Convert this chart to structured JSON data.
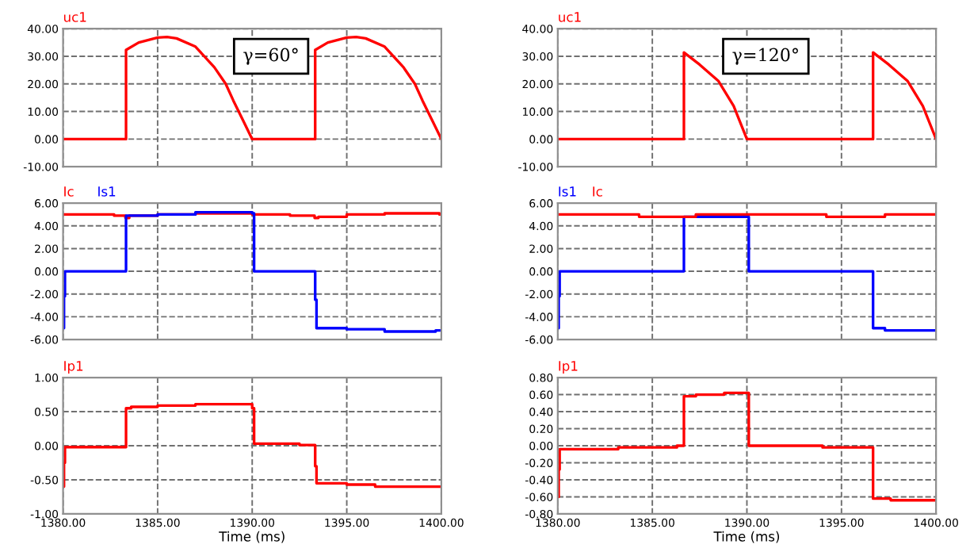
{
  "chart_data": [
    {
      "type": "line",
      "annotations": [
        "γ=60°"
      ],
      "legend": "top left",
      "grid": true,
      "tick_labels": "y",
      "xlim": [
        1380,
        1400
      ],
      "xticks": [
        1380,
        1385,
        1390,
        1395,
        1400
      ],
      "ylim": [
        -10,
        40
      ],
      "yticks": [
        {
          "value": -10,
          "label": "-10.00"
        },
        {
          "value": 0,
          "label": "0.00"
        },
        {
          "value": 10,
          "label": "10.00"
        },
        {
          "value": 20,
          "label": "20.00"
        },
        {
          "value": 30,
          "label": "30.00"
        },
        {
          "value": 40,
          "label": "40.00"
        }
      ],
      "series": [
        {
          "name": "uc1",
          "color": "#ff0000",
          "x": [
            1380,
            1383.33,
            1383.33,
            1384,
            1385,
            1385.5,
            1386,
            1387,
            1388,
            1388.6,
            1389,
            1389.5,
            1390,
            1393.33,
            1393.33,
            1394,
            1395,
            1395.5,
            1396,
            1397,
            1398,
            1398.6,
            1399,
            1399.5,
            1400
          ],
          "values": [
            0,
            0,
            32.3,
            35,
            36.8,
            37,
            36.5,
            33.5,
            26,
            20,
            14,
            7,
            0,
            0,
            32.3,
            35,
            36.8,
            37,
            36.5,
            33.5,
            26,
            20,
            14,
            7,
            0
          ]
        }
      ]
    },
    {
      "type": "line",
      "annotations": [
        "γ=120°"
      ],
      "legend": "top left",
      "grid": true,
      "tick_labels": "y",
      "xlim": [
        1380,
        1400
      ],
      "xticks": [
        1380,
        1385,
        1390,
        1395,
        1400
      ],
      "ylim": [
        -10,
        40
      ],
      "yticks": [
        {
          "value": -10,
          "label": "-10.00"
        },
        {
          "value": 0,
          "label": "0.00"
        },
        {
          "value": 10,
          "label": "10.00"
        },
        {
          "value": 20,
          "label": "20.00"
        },
        {
          "value": 30,
          "label": "30.00"
        },
        {
          "value": 40,
          "label": "40.00"
        }
      ],
      "series": [
        {
          "name": "uc1",
          "color": "#ff0000",
          "x": [
            1380,
            1386.67,
            1386.67,
            1387.5,
            1388.5,
            1389.3,
            1390,
            1396.67,
            1396.67,
            1397.5,
            1398.5,
            1399.3,
            1400
          ],
          "values": [
            0,
            0,
            31.4,
            27,
            21,
            12,
            0,
            0,
            31.4,
            27,
            21,
            12,
            0
          ]
        }
      ]
    },
    {
      "type": "step",
      "legend": "top left",
      "grid": true,
      "tick_labels": "y",
      "xlim": [
        1380,
        1400
      ],
      "xticks": [
        1380,
        1385,
        1390,
        1395,
        1400
      ],
      "ylim": [
        -6,
        6
      ],
      "yticks": [
        {
          "value": -6,
          "label": "-6.00"
        },
        {
          "value": -4,
          "label": "-4.00"
        },
        {
          "value": -2,
          "label": "-2.00"
        },
        {
          "value": 0,
          "label": "0.00"
        },
        {
          "value": 2,
          "label": "2.00"
        },
        {
          "value": 4,
          "label": "4.00"
        },
        {
          "value": 6,
          "label": "6.00"
        }
      ],
      "series": [
        {
          "name": "Ic",
          "color": "#ff0000",
          "x": [
            1380,
            1382.7,
            1383.3,
            1383.5,
            1385,
            1387,
            1390,
            1392,
            1393.3,
            1393.5,
            1395,
            1397,
            1399.9,
            1400
          ],
          "values": [
            5.0,
            4.9,
            4.7,
            4.9,
            5.0,
            5.1,
            5.0,
            4.9,
            4.7,
            4.8,
            5.0,
            5.1,
            5.0,
            5.0
          ]
        },
        {
          "name": "Is1",
          "color": "#0000ff",
          "x": [
            1380,
            1380.05,
            1380.1,
            1383.33,
            1385,
            1387,
            1390,
            1390.1,
            1393.33,
            1393.4,
            1395,
            1397,
            1399.7,
            1400
          ],
          "values": [
            -5,
            -2.2,
            0,
            4.9,
            5.0,
            5.2,
            5.1,
            0,
            -2.5,
            -5.0,
            -5.1,
            -5.3,
            -5.2,
            -5.2
          ]
        }
      ]
    },
    {
      "type": "step",
      "legend": "top left",
      "grid": true,
      "tick_labels": "y",
      "xlim": [
        1380,
        1400
      ],
      "xticks": [
        1380,
        1385,
        1390,
        1395,
        1400
      ],
      "ylim": [
        -6,
        6
      ],
      "yticks": [
        {
          "value": -6,
          "label": "-6.00"
        },
        {
          "value": -4,
          "label": "-4.00"
        },
        {
          "value": -2,
          "label": "-2.00"
        },
        {
          "value": 0,
          "label": "0.00"
        },
        {
          "value": 2,
          "label": "2.00"
        },
        {
          "value": 4,
          "label": "4.00"
        },
        {
          "value": 6,
          "label": "6.00"
        }
      ],
      "series": [
        {
          "name": "Is1",
          "color": "#0000ff",
          "x": [
            1380,
            1380.05,
            1380.1,
            1386.67,
            1390,
            1390.1,
            1396.67,
            1397.3,
            1400
          ],
          "values": [
            -5,
            -2.2,
            0,
            4.8,
            4.8,
            0,
            -5.0,
            -5.2,
            -5.2
          ]
        },
        {
          "name": "Ic",
          "color": "#ff0000",
          "x": [
            1380,
            1384.3,
            1387.3,
            1394.2,
            1397.3,
            1400
          ],
          "values": [
            5.0,
            4.8,
            5.0,
            4.8,
            5.0,
            5.0
          ]
        }
      ]
    },
    {
      "type": "step",
      "legend": "top left",
      "grid": true,
      "xlabel": "Time (ms)",
      "xlim": [
        1380,
        1400
      ],
      "xticks": [
        {
          "value": 1380,
          "label": "1380.00"
        },
        {
          "value": 1385,
          "label": "1385.00"
        },
        {
          "value": 1390,
          "label": "1390.00"
        },
        {
          "value": 1395,
          "label": "1395.00"
        },
        {
          "value": 1400,
          "label": "1400.00"
        }
      ],
      "ylim": [
        -1,
        1
      ],
      "yticks": [
        {
          "value": -1,
          "label": "-1.00"
        },
        {
          "value": -0.5,
          "label": "-0.50"
        },
        {
          "value": 0,
          "label": "0.00"
        },
        {
          "value": 0.5,
          "label": "0.50"
        },
        {
          "value": 1,
          "label": "1.00"
        }
      ],
      "series": [
        {
          "name": "Ip1",
          "color": "#ff0000",
          "x": [
            1380,
            1380.05,
            1380.1,
            1383.33,
            1383.6,
            1385,
            1387,
            1390,
            1390.1,
            1392.5,
            1393.33,
            1393.4,
            1395,
            1396.5,
            1400
          ],
          "values": [
            -0.6,
            -0.25,
            -0.02,
            0.55,
            0.57,
            0.59,
            0.61,
            0.55,
            0.03,
            0.01,
            -0.3,
            -0.55,
            -0.57,
            -0.6,
            -0.6
          ]
        }
      ]
    },
    {
      "type": "step",
      "legend": "top left",
      "grid": true,
      "xlabel": "Time (ms)",
      "xlim": [
        1380,
        1400
      ],
      "xticks": [
        {
          "value": 1380,
          "label": "1380.00"
        },
        {
          "value": 1385,
          "label": "1385.00"
        },
        {
          "value": 1390,
          "label": "1390.00"
        },
        {
          "value": 1395,
          "label": "1395.00"
        },
        {
          "value": 1400,
          "label": "1400.00"
        }
      ],
      "ylim": [
        -0.8,
        0.8
      ],
      "yticks": [
        {
          "value": -0.8,
          "label": "-0.80"
        },
        {
          "value": -0.6,
          "label": "-0.60"
        },
        {
          "value": -0.4,
          "label": "-0.40"
        },
        {
          "value": -0.2,
          "label": "-0.20"
        },
        {
          "value": 0,
          "label": "0.00"
        },
        {
          "value": 0.2,
          "label": "0.20"
        },
        {
          "value": 0.4,
          "label": "0.40"
        },
        {
          "value": 0.6,
          "label": "0.60"
        },
        {
          "value": 0.8,
          "label": "0.80"
        }
      ],
      "series": [
        {
          "name": "Ip1",
          "color": "#ff0000",
          "x": [
            1380,
            1380.05,
            1380.1,
            1383.2,
            1386.3,
            1386.67,
            1387.3,
            1388.8,
            1390,
            1390.1,
            1394,
            1396.67,
            1397.6,
            1400
          ],
          "values": [
            -0.6,
            -0.28,
            -0.04,
            -0.02,
            0.0,
            0.58,
            0.6,
            0.62,
            0.62,
            0.0,
            -0.02,
            -0.62,
            -0.64,
            -0.64
          ]
        }
      ]
    }
  ]
}
